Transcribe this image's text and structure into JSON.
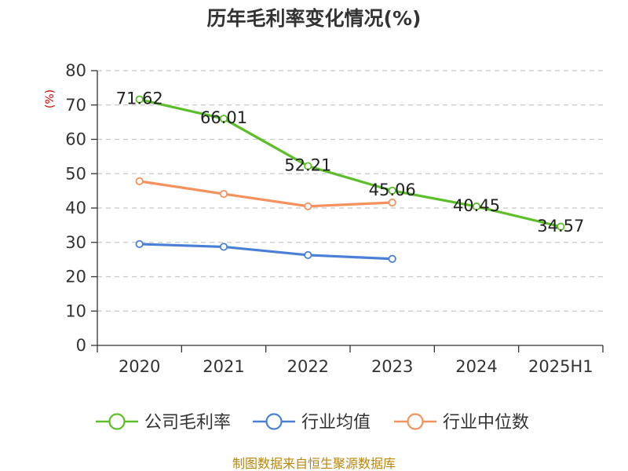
{
  "chart_data": {
    "type": "line",
    "title": "历年毛利率变化情况(%)",
    "unit_label": "(%)",
    "categories": [
      "2020",
      "2021",
      "2022",
      "2023",
      "2024",
      "2025H1"
    ],
    "ylim": [
      0,
      80
    ],
    "yticks": [
      0,
      10,
      20,
      30,
      40,
      50,
      60,
      70,
      80
    ],
    "grid": true,
    "legend_position": "bottom",
    "series": [
      {
        "name": "公司毛利率",
        "color": "#5cbf2a",
        "show_labels": true,
        "values": [
          71.62,
          66.01,
          52.21,
          45.06,
          40.45,
          34.57
        ]
      },
      {
        "name": "行业均值",
        "color": "#4a7fd6",
        "show_labels": false,
        "values": [
          29.5,
          28.7,
          26.3,
          25.2,
          null,
          null
        ]
      },
      {
        "name": "行业中位数",
        "color": "#f4915c",
        "show_labels": false,
        "values": [
          47.8,
          44.1,
          40.5,
          41.6,
          null,
          null
        ]
      }
    ]
  },
  "source_text": "制图数据来自恒生聚源数据库"
}
